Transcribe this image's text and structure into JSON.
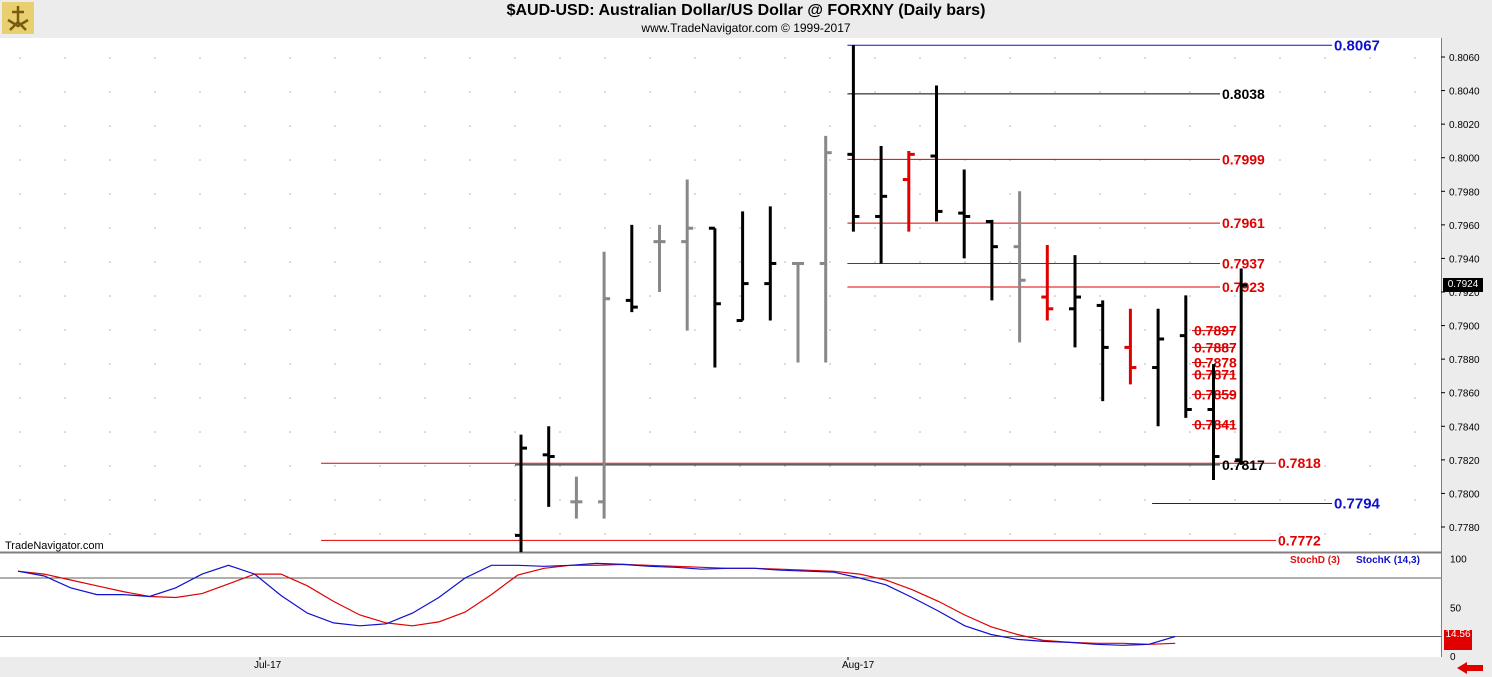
{
  "header": {
    "title": "$AUD-USD:  Australian Dollar/US Dollar @ FORXNY  (Daily bars)",
    "subtitle": "www.TradeNavigator.com © 1999-2017"
  },
  "watermark": "TradeNavigator.com",
  "last_price": "0.7924",
  "stoch_last": "14.56",
  "x_labels": [
    "Jul-17",
    "Aug-17"
  ],
  "legend": {
    "stochd": "StochD (3)",
    "stochk": "StochK (14,3)"
  },
  "colors": {
    "black": "#000000",
    "gray": "#888888",
    "red": "#e00000",
    "blue": "#1010d0"
  },
  "chart_data": [
    {
      "type": "ohlc",
      "ylim": [
        0.7765,
        0.8067
      ],
      "yticks": [
        "0.8060",
        "0.8040",
        "0.8020",
        "0.8000",
        "0.7980",
        "0.7960",
        "0.7940",
        "0.7920",
        "0.7900",
        "0.7880",
        "0.7860",
        "0.7840",
        "0.7820",
        "0.7800",
        "0.7780"
      ],
      "bars": [
        {
          "o": 0.7775,
          "h": 0.7835,
          "l": 0.7765,
          "c": 0.7827,
          "color": "black"
        },
        {
          "o": 0.7823,
          "h": 0.784,
          "l": 0.7792,
          "c": 0.7822,
          "color": "black"
        },
        {
          "o": 0.7795,
          "h": 0.781,
          "l": 0.7785,
          "c": 0.7795,
          "color": "gray"
        },
        {
          "o": 0.7795,
          "h": 0.7944,
          "l": 0.7785,
          "c": 0.7916,
          "color": "gray"
        },
        {
          "o": 0.7915,
          "h": 0.796,
          "l": 0.7908,
          "c": 0.7911,
          "color": "black"
        },
        {
          "o": 0.795,
          "h": 0.796,
          "l": 0.792,
          "c": 0.795,
          "color": "gray"
        },
        {
          "o": 0.795,
          "h": 0.7987,
          "l": 0.7897,
          "c": 0.7958,
          "color": "gray"
        },
        {
          "o": 0.7958,
          "h": 0.7958,
          "l": 0.7875,
          "c": 0.7913,
          "color": "black"
        },
        {
          "o": 0.7903,
          "h": 0.7968,
          "l": 0.7903,
          "c": 0.7925,
          "color": "black"
        },
        {
          "o": 0.7925,
          "h": 0.7971,
          "l": 0.7903,
          "c": 0.7937,
          "color": "black"
        },
        {
          "o": 0.7937,
          "h": 0.7937,
          "l": 0.7878,
          "c": 0.7937,
          "color": "gray"
        },
        {
          "o": 0.7937,
          "h": 0.8013,
          "l": 0.7878,
          "c": 0.8003,
          "color": "gray"
        },
        {
          "o": 0.8002,
          "h": 0.8067,
          "l": 0.7956,
          "c": 0.7965,
          "color": "black"
        },
        {
          "o": 0.7965,
          "h": 0.8007,
          "l": 0.7937,
          "c": 0.7977,
          "color": "black"
        },
        {
          "o": 0.7987,
          "h": 0.8004,
          "l": 0.7956,
          "c": 0.8002,
          "color": "red"
        },
        {
          "o": 0.8001,
          "h": 0.8043,
          "l": 0.7962,
          "c": 0.7968,
          "color": "black"
        },
        {
          "o": 0.7967,
          "h": 0.7993,
          "l": 0.794,
          "c": 0.7965,
          "color": "black"
        },
        {
          "o": 0.7962,
          "h": 0.7963,
          "l": 0.7915,
          "c": 0.7947,
          "color": "black"
        },
        {
          "o": 0.7947,
          "h": 0.798,
          "l": 0.789,
          "c": 0.7927,
          "color": "gray"
        },
        {
          "o": 0.7917,
          "h": 0.7948,
          "l": 0.7903,
          "c": 0.791,
          "color": "red"
        },
        {
          "o": 0.791,
          "h": 0.7942,
          "l": 0.7887,
          "c": 0.7917,
          "color": "black"
        },
        {
          "o": 0.7912,
          "h": 0.7915,
          "l": 0.7855,
          "c": 0.7887,
          "color": "black"
        },
        {
          "o": 0.7887,
          "h": 0.791,
          "l": 0.7865,
          "c": 0.7875,
          "color": "red"
        },
        {
          "o": 0.7875,
          "h": 0.791,
          "l": 0.784,
          "c": 0.7892,
          "color": "black"
        },
        {
          "o": 0.7894,
          "h": 0.7918,
          "l": 0.7845,
          "c": 0.785,
          "color": "black"
        },
        {
          "o": 0.785,
          "h": 0.7877,
          "l": 0.7808,
          "c": 0.7822,
          "color": "black"
        },
        {
          "o": 0.782,
          "h": 0.7934,
          "l": 0.7817,
          "c": 0.7924,
          "color": "black"
        }
      ],
      "levels": [
        {
          "value": 0.8067,
          "label": "0.8067",
          "color": "blue",
          "start_bar": 12
        },
        {
          "value": 0.8038,
          "label": "0.8038",
          "color": "black",
          "start_bar": 12
        },
        {
          "value": 0.7999,
          "label": "0.7999",
          "color": "red",
          "start_bar": 12
        },
        {
          "value": 0.7961,
          "label": "0.7961",
          "color": "red",
          "start_bar": 12
        },
        {
          "value": 0.7937,
          "label": "0.7937",
          "color": "red",
          "start_bar": 12
        },
        {
          "value": 0.7923,
          "label": "0.7923",
          "color": "red",
          "start_bar": 12
        },
        {
          "value": 0.7897,
          "label": "0.7897",
          "color": "red",
          "start_bar": 26
        },
        {
          "value": 0.7887,
          "label": "0.7887",
          "color": "red",
          "start_bar": 26
        },
        {
          "value": 0.7878,
          "label": "0.7878",
          "color": "red",
          "start_bar": 25
        },
        {
          "value": 0.7871,
          "label": "0.7871",
          "color": "red",
          "start_bar": 26
        },
        {
          "value": 0.7859,
          "label": "0.7859",
          "color": "red",
          "start_bar": 26
        },
        {
          "value": 0.7841,
          "label": "0.7841",
          "color": "red",
          "start_bar": 26
        },
        {
          "value": 0.7818,
          "label": "0.7818",
          "color": "red",
          "start_bar": -7
        },
        {
          "value": 0.7817,
          "label": "0.7817",
          "color": "black",
          "start_bar": 0
        },
        {
          "value": 0.7794,
          "label": "0.7794",
          "color": "blue",
          "start_bar": 23
        },
        {
          "value": 0.7772,
          "label": "0.7772",
          "color": "red",
          "start_bar": -7
        }
      ]
    },
    {
      "type": "line",
      "ylim": [
        0,
        100
      ],
      "yticks": [
        "100",
        "50",
        "0"
      ],
      "hlines": [
        80,
        20
      ],
      "series": [
        {
          "name": "StochD (3)",
          "color": "red",
          "values": [
            87,
            84,
            78,
            72,
            66,
            61,
            60,
            64,
            74,
            84,
            84,
            72,
            56,
            42,
            34,
            31,
            35,
            45,
            63,
            83,
            90,
            93,
            93,
            94,
            93,
            92,
            91,
            90,
            90,
            89,
            88,
            87,
            84,
            78,
            68,
            56,
            42,
            30,
            22,
            16,
            14,
            13,
            13,
            12,
            13
          ]
        },
        {
          "name": "StochK (14,3)",
          "color": "blue",
          "values": [
            87,
            82,
            70,
            63,
            63,
            61,
            70,
            84,
            93,
            84,
            62,
            44,
            34,
            31,
            33,
            44,
            60,
            80,
            93,
            93,
            92,
            93,
            95,
            94,
            92,
            91,
            89,
            90,
            90,
            88,
            87,
            86,
            80,
            73,
            60,
            46,
            31,
            22,
            17,
            15,
            14,
            12,
            11,
            12,
            20
          ]
        }
      ]
    }
  ]
}
